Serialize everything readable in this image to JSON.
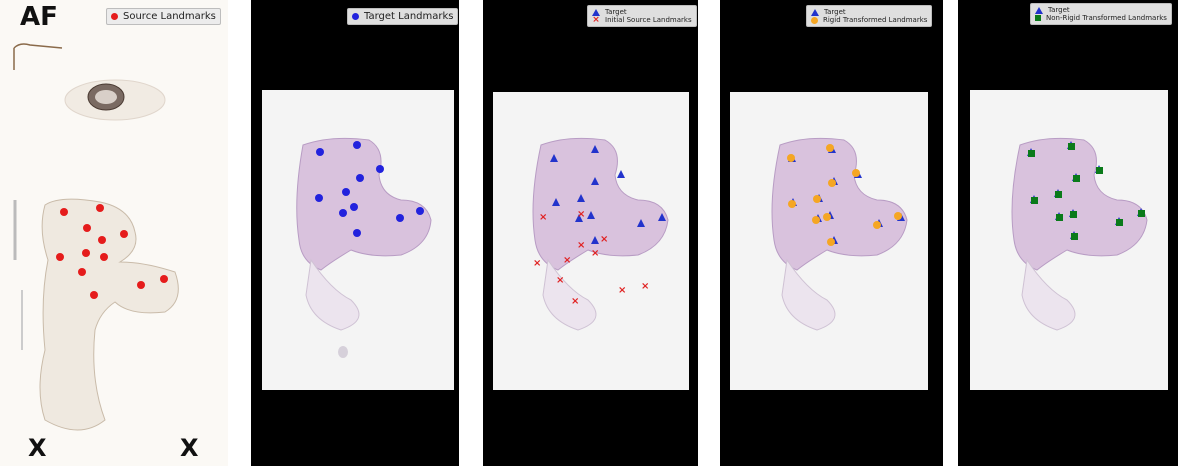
{
  "panels": [
    {
      "label": "AF",
      "corner_left": "X",
      "corner_right": "X",
      "legend": [
        "Source Landmarks"
      ]
    },
    {
      "legend": [
        "Target Landmarks"
      ]
    },
    {
      "legend": [
        "Target",
        "Initial Source Landmarks"
      ]
    },
    {
      "legend": [
        "Target",
        "Rigid Transformed Landmarks"
      ]
    },
    {
      "legend": [
        "Target",
        "Non-Rigid Transformed Landmarks"
      ]
    }
  ],
  "colors": {
    "source": "#e51c1c",
    "target_dot": "#2222dd",
    "target_triangle": "#2233cc",
    "initial_x": "#e02020",
    "rigid": "#f5a623",
    "nonrigid": "#0a7a1a",
    "tissue": "#d9c2dd",
    "tissue_dark": "#b89cc4"
  }
}
